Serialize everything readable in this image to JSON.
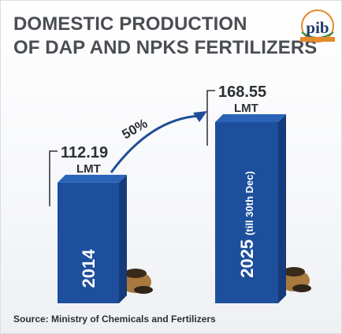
{
  "title_line1": "DOMESTIC PRODUCTION",
  "title_line2": "OF DAP AND NPKS FERTILIZERS",
  "logo_text": "pib",
  "source": "Source: Ministry of Chemicals and Fertilizers",
  "growth_label": "50%",
  "colors": {
    "bar_front": "#1d4f9c",
    "bar_side": "#163b7a",
    "bar_top": "#2a64b8",
    "arrow": "#1f4e95",
    "title": "#4a4d52"
  },
  "chart_data": {
    "type": "bar",
    "categories": [
      "2014",
      "2025 (till 30th Dec)"
    ],
    "values": [
      112.19,
      168.55
    ],
    "value_labels": [
      "112.19",
      "168.55"
    ],
    "unit": "LMT",
    "bar_text": [
      "2014",
      "2025"
    ],
    "bar_subtext": [
      "",
      "(till 30th Dec)"
    ],
    "annotation": "50%",
    "title": "DOMESTIC PRODUCTION OF DAP AND NPKS FERTILIZERS",
    "xlabel": "",
    "ylabel": ""
  }
}
